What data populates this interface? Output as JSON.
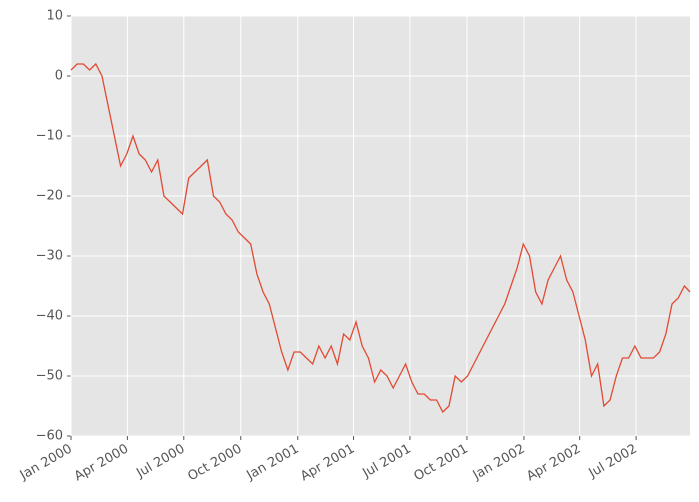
{
  "chart_data": {
    "type": "line",
    "x": [
      "2000-01-01",
      "2000-01-11",
      "2000-01-21",
      "2000-01-31",
      "2000-02-10",
      "2000-02-20",
      "2000-03-01",
      "2000-03-11",
      "2000-03-21",
      "2000-03-31",
      "2000-04-10",
      "2000-04-20",
      "2000-04-30",
      "2000-05-10",
      "2000-05-20",
      "2000-05-30",
      "2000-06-09",
      "2000-06-19",
      "2000-06-29",
      "2000-07-09",
      "2000-07-19",
      "2000-07-29",
      "2000-08-08",
      "2000-08-18",
      "2000-08-28",
      "2000-09-07",
      "2000-09-17",
      "2000-09-27",
      "2000-10-07",
      "2000-10-17",
      "2000-10-27",
      "2000-11-06",
      "2000-11-16",
      "2000-11-26",
      "2000-12-06",
      "2000-12-16",
      "2000-12-26",
      "2001-01-05",
      "2001-01-15",
      "2001-01-25",
      "2001-02-04",
      "2001-02-14",
      "2001-02-24",
      "2001-03-06",
      "2001-03-16",
      "2001-03-26",
      "2001-04-05",
      "2001-04-15",
      "2001-04-25",
      "2001-05-05",
      "2001-05-15",
      "2001-05-25",
      "2001-06-04",
      "2001-06-14",
      "2001-06-24",
      "2001-07-04",
      "2001-07-14",
      "2001-07-24",
      "2001-08-03",
      "2001-08-13",
      "2001-08-23",
      "2001-09-02",
      "2001-09-12",
      "2001-09-22",
      "2001-10-02",
      "2001-10-12",
      "2001-10-22",
      "2001-11-01",
      "2001-11-11",
      "2001-11-21",
      "2001-12-01",
      "2001-12-11",
      "2001-12-21",
      "2001-12-31",
      "2002-01-10",
      "2002-01-20",
      "2002-01-30",
      "2002-02-09",
      "2002-02-19",
      "2002-03-01",
      "2002-03-11",
      "2002-03-21",
      "2002-03-31",
      "2002-04-10",
      "2002-04-20",
      "2002-04-30",
      "2002-05-10",
      "2002-05-20",
      "2002-05-30",
      "2002-06-09",
      "2002-06-19",
      "2002-06-29",
      "2002-07-09",
      "2002-07-19",
      "2002-07-29",
      "2002-08-08",
      "2002-08-18",
      "2002-08-28",
      "2002-09-07",
      "2002-09-17",
      "2002-09-26"
    ],
    "series": [
      {
        "color": "#e24a33",
        "values": [
          1,
          2,
          2,
          1,
          2,
          0,
          -5,
          -10,
          -15,
          -13,
          -10,
          -13,
          -14,
          -16,
          -14,
          -20,
          -21,
          -22,
          -23,
          -17,
          -16,
          -15,
          -14,
          -20,
          -21,
          -23,
          -24,
          -26,
          -27,
          -28,
          -33,
          -36,
          -38,
          -42,
          -46,
          -49,
          -46,
          -46,
          -47,
          -48,
          -45,
          -47,
          -45,
          -48,
          -43,
          -44,
          -41,
          -45,
          -47,
          -51,
          -49,
          -50,
          -52,
          -50,
          -48,
          -51,
          -53,
          -53,
          -54,
          -54,
          -56,
          -55,
          -50,
          -51,
          -50,
          -48,
          -46,
          -44,
          -42,
          -40,
          -38,
          -35,
          -32,
          -28,
          -30,
          -36,
          -38,
          -34,
          -32,
          -30,
          -34,
          -36,
          -40,
          -44,
          -50,
          -48,
          -55,
          -54,
          -50,
          -47,
          -47,
          -45,
          -47,
          -47,
          -47,
          -46,
          -43,
          -38,
          -37,
          -35,
          -36
        ]
      }
    ],
    "xlim": [
      "2000-01-01",
      "2002-09-26"
    ],
    "xticks": [
      {
        "value": "2000-01-01",
        "label": "Jan 2000"
      },
      {
        "value": "2000-04-01",
        "label": "Apr 2000"
      },
      {
        "value": "2000-07-01",
        "label": "Jul 2000"
      },
      {
        "value": "2000-10-01",
        "label": "Oct 2000"
      },
      {
        "value": "2001-01-01",
        "label": "Jan 2001"
      },
      {
        "value": "2001-04-01",
        "label": "Apr 2001"
      },
      {
        "value": "2001-07-01",
        "label": "Jul 2001"
      },
      {
        "value": "2001-10-01",
        "label": "Oct 2001"
      },
      {
        "value": "2002-01-01",
        "label": "Jan 2002"
      },
      {
        "value": "2002-04-01",
        "label": "Apr 2002"
      },
      {
        "value": "2002-07-01",
        "label": "Jul 2002"
      }
    ],
    "ylim": [
      -60,
      10
    ],
    "yticks": [
      {
        "value": -60,
        "label": "−60"
      },
      {
        "value": -50,
        "label": "−50"
      },
      {
        "value": -40,
        "label": "−40"
      },
      {
        "value": -30,
        "label": "−30"
      },
      {
        "value": -20,
        "label": "−20"
      },
      {
        "value": -10,
        "label": "−10"
      },
      0,
      10
    ],
    "grid": true
  }
}
